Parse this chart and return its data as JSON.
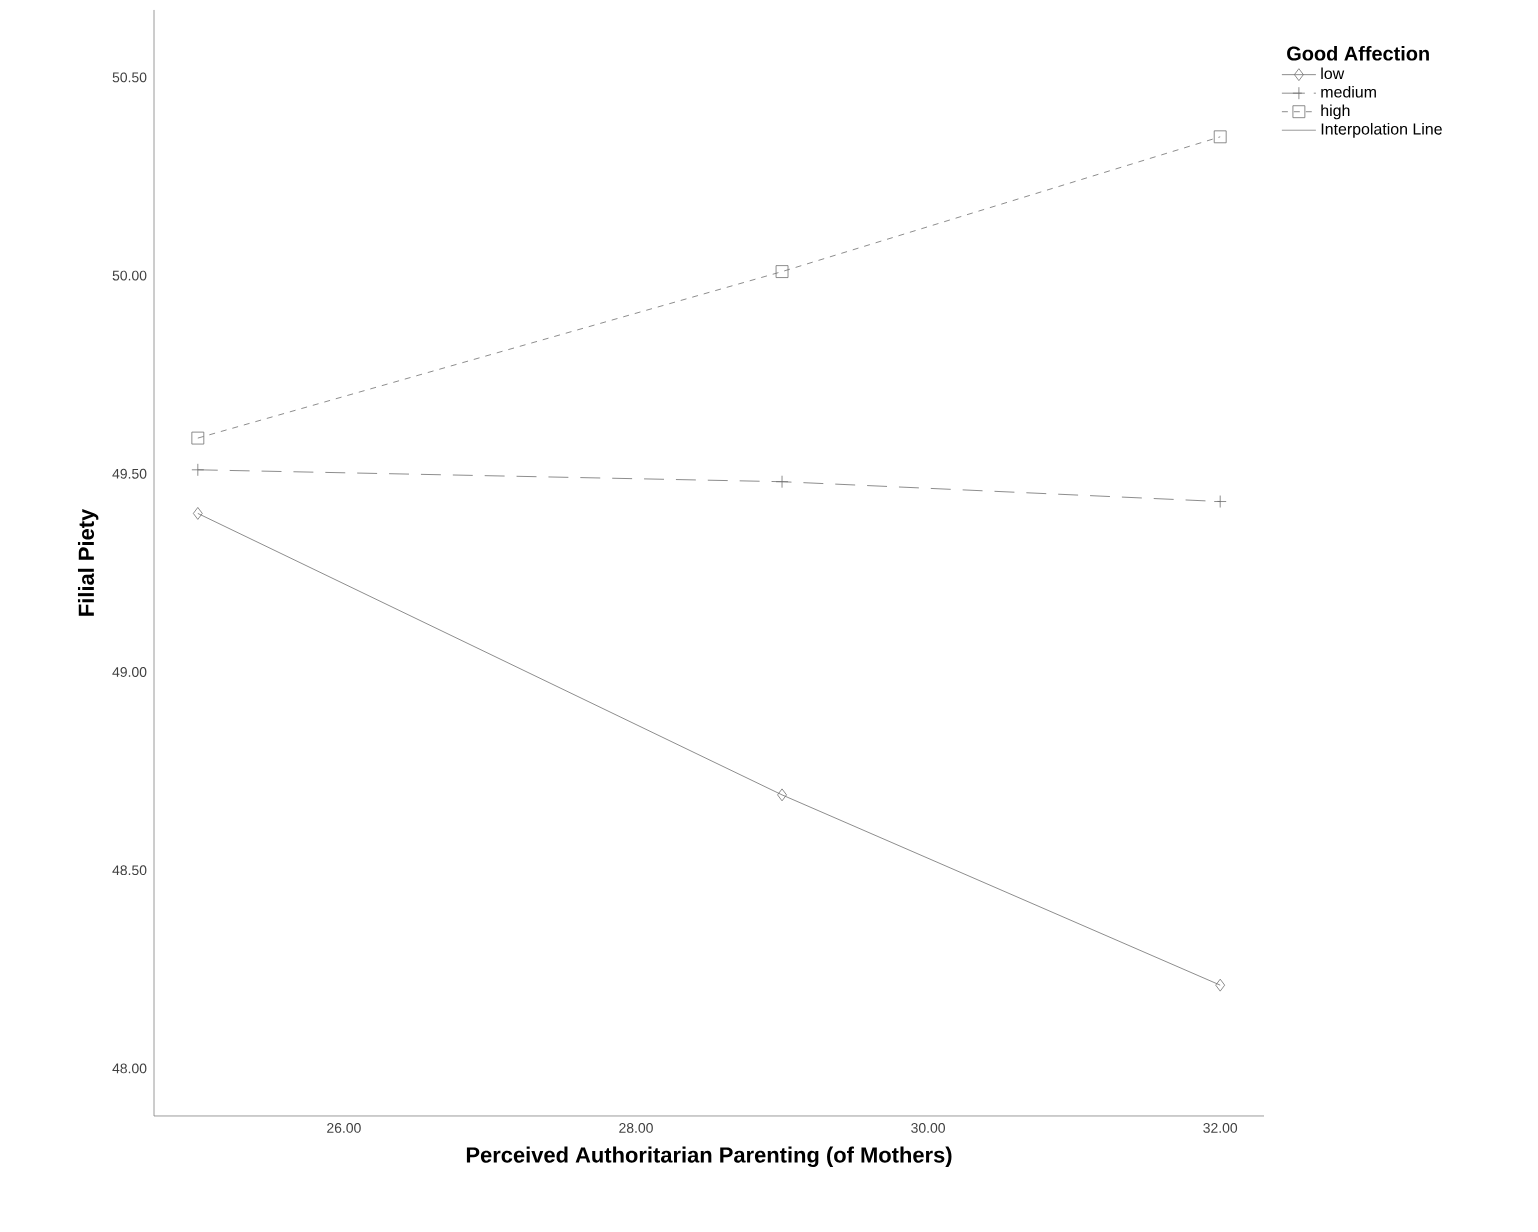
{
  "chart_data": {
    "type": "line",
    "xlabel": "Perceived Authoritarian Parenting (of Mothers)",
    "ylabel": "Filial Piety",
    "legend_title": "Good Affection",
    "legend": "top right",
    "x": [
      25,
      29,
      32
    ],
    "series": [
      {
        "name": "low",
        "color": "#707070",
        "marker": "diamond",
        "line_style": "solid",
        "values": [
          49.4,
          48.69,
          48.21
        ]
      },
      {
        "name": "medium",
        "color": "#707070",
        "marker": "cross",
        "line_style": "longdashed",
        "values": [
          49.51,
          49.48,
          49.43
        ]
      },
      {
        "name": "high",
        "color": "#707070",
        "marker": "square",
        "line_style": "dashed",
        "values": [
          49.59,
          50.01,
          50.35
        ]
      }
    ],
    "annotations": [
      "Interpolation Line"
    ],
    "xlim": [
      24.7,
      32.3
    ],
    "ylim": [
      47.88,
      50.67
    ],
    "xticks": [
      {
        "value": 26,
        "label": "26.00"
      },
      {
        "value": 28,
        "label": "28.00"
      },
      {
        "value": 30,
        "label": "30.00"
      },
      {
        "value": 32,
        "label": "32.00"
      }
    ],
    "yticks": [
      {
        "value": 48,
        "label": "48.00"
      },
      {
        "value": 48.5,
        "label": "48.50"
      },
      {
        "value": 49,
        "label": "49.00"
      },
      {
        "value": 49.5,
        "label": "49.50"
      },
      {
        "value": 50,
        "label": "50.00"
      },
      {
        "value": 50.5,
        "label": "50.50"
      }
    ],
    "grid": false
  }
}
